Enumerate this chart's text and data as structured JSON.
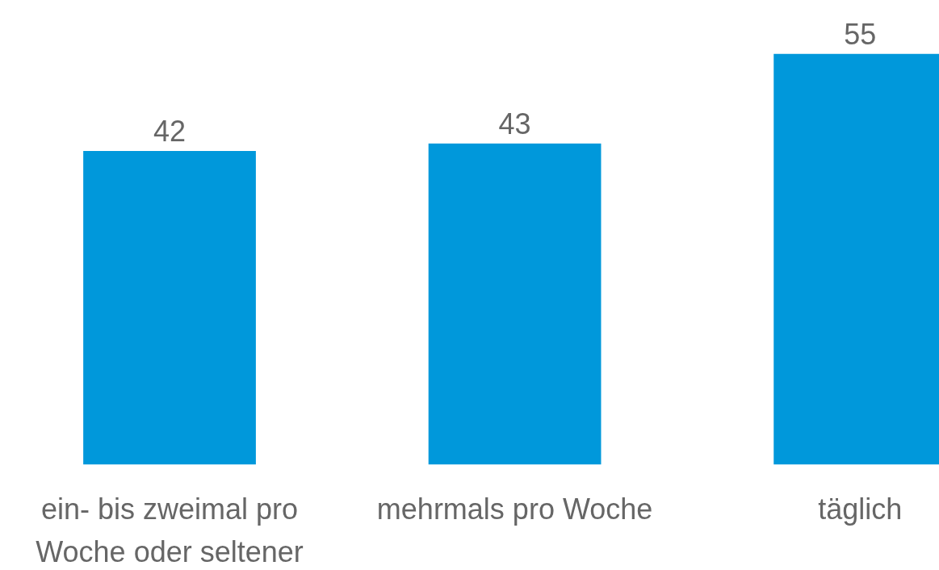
{
  "chart_data": {
    "type": "bar",
    "categories": [
      "ein- bis zweimal pro\nWoche oder seltener",
      "mehrmals pro Woche",
      "täglich"
    ],
    "values": [
      42,
      43,
      55
    ],
    "color": "#0098db",
    "data_labels": true,
    "grid": false,
    "tick_labels": "x"
  }
}
